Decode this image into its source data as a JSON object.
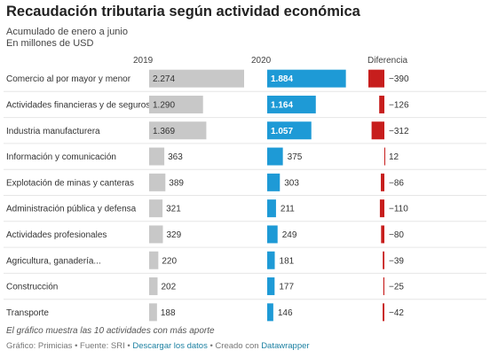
{
  "header": {
    "title": "Recaudación tributaria según actividad económica",
    "subtitle_1": "Acumulado de enero a junio",
    "subtitle_2": "En millones de USD"
  },
  "columns": {
    "col_2019": "2019",
    "col_2020": "2020",
    "col_diff": "Diferencia"
  },
  "chart_data": {
    "type": "table",
    "categories": [
      "Comercio al por mayor y menor",
      "Actividades financieras y de seguros",
      "Industria manufacturera",
      "Información y comunicación",
      "Explotación de minas y canteras",
      "Administración pública y defensa",
      "Actividades profesionales",
      "Agricultura, ganadería...",
      "Construcción",
      "Transporte"
    ],
    "series": [
      {
        "name": "2019",
        "values": [
          2274,
          1290,
          1369,
          363,
          389,
          321,
          329,
          220,
          202,
          188
        ],
        "labels": [
          "2.274",
          "1.290",
          "1.369",
          "363",
          "389",
          "321",
          "329",
          "220",
          "202",
          "188"
        ],
        "color": "#c8c8c8"
      },
      {
        "name": "2020",
        "values": [
          1884,
          1164,
          1057,
          375,
          303,
          211,
          249,
          181,
          177,
          146
        ],
        "labels": [
          "1.884",
          "1.164",
          "1.057",
          "375",
          "303",
          "211",
          "249",
          "181",
          "177",
          "146"
        ],
        "color": "#1e9ad6"
      },
      {
        "name": "Diferencia",
        "values": [
          -390,
          -126,
          -312,
          12,
          -86,
          -110,
          -80,
          -39,
          -25,
          -42
        ],
        "labels": [
          "−390",
          "−126",
          "−312",
          "12",
          "−86",
          "−110",
          "−80",
          "−39",
          "−25",
          "−42"
        ],
        "color_negative": "#c71e1d",
        "color_positive": "#c71e1d"
      }
    ]
  },
  "footer": {
    "note": "El gráfico muestra las 10 actividades con más aporte",
    "source_prefix": "Gráfico: Primicias • Fuente: SRI • ",
    "download_link": "Descargar los datos",
    "made_with": " • Creado con ",
    "tool_link": "Datawrapper"
  }
}
